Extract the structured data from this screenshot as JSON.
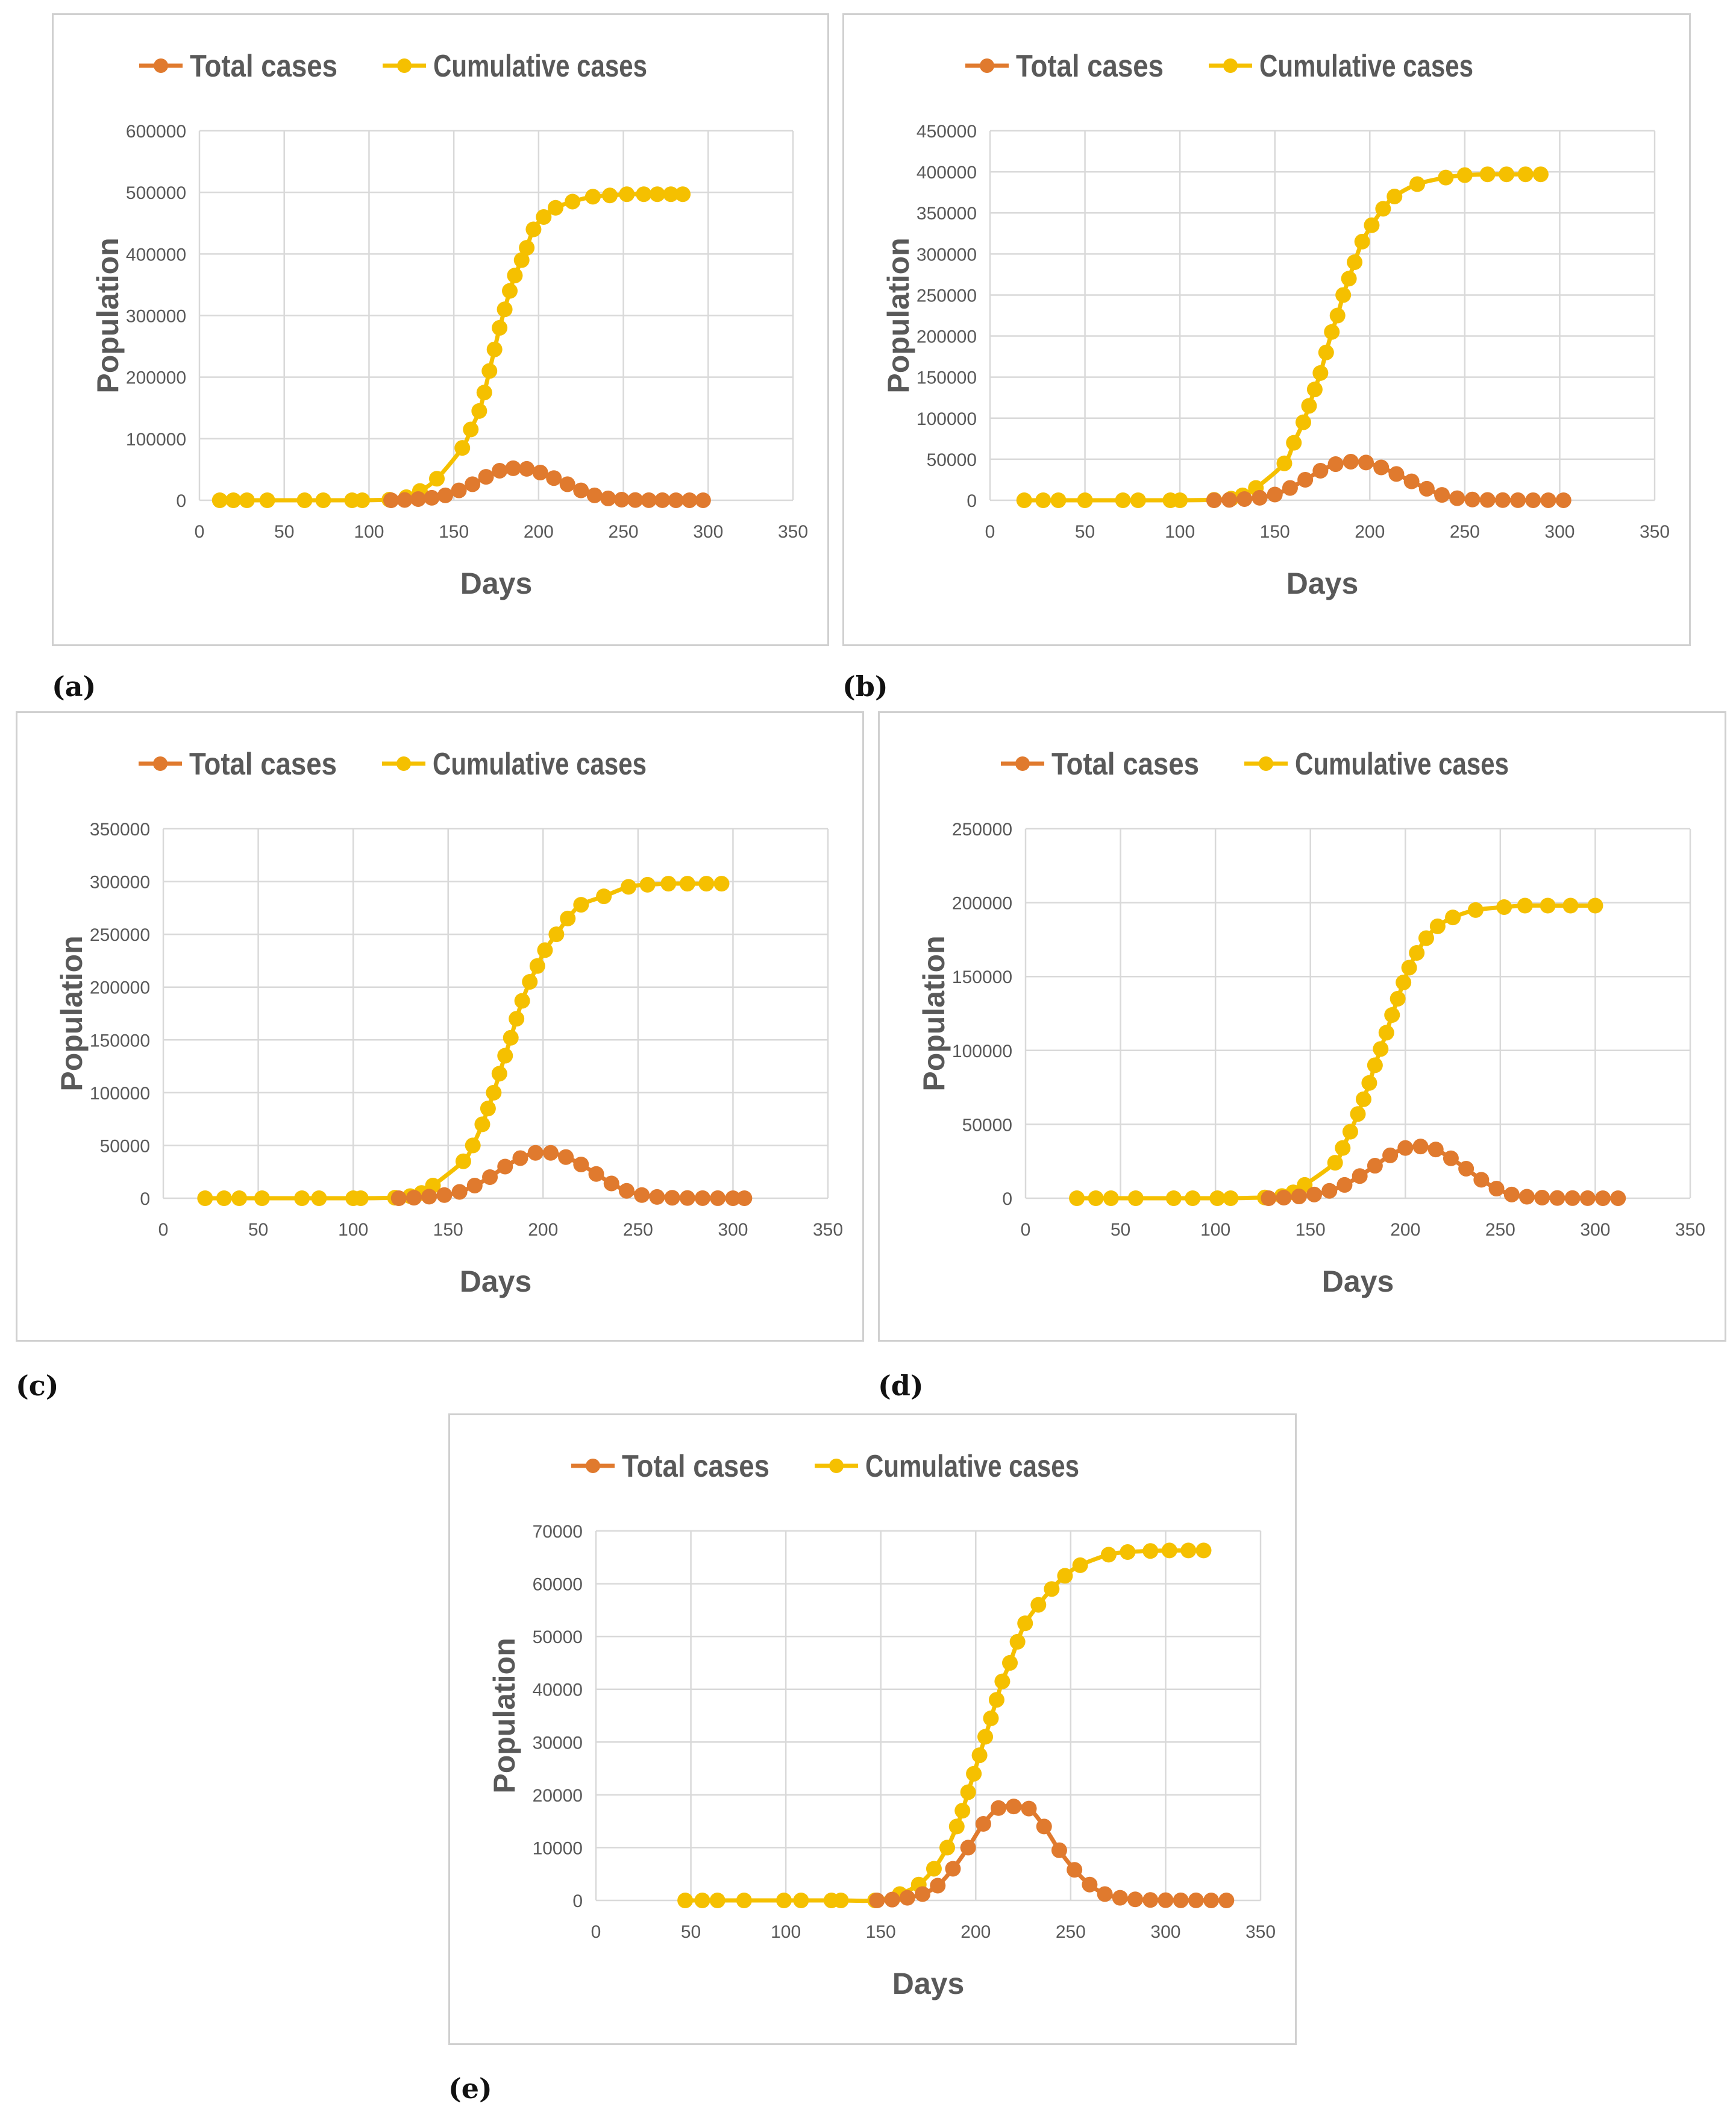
{
  "colors": {
    "total": "#E07A2E",
    "cumulative": "#F5C000",
    "grid": "#D9D9D9",
    "frame": "#D0D0D0",
    "text": "#595959"
  },
  "chart_data": [
    {
      "type": "line",
      "panel_label": "(a)",
      "xlabel": "Days",
      "ylabel": "Population",
      "xlim": [
        0,
        350
      ],
      "ylim": [
        0,
        600000
      ],
      "xticks": [
        0,
        50,
        100,
        150,
        200,
        250,
        300,
        350
      ],
      "yticks": [
        0,
        100000,
        200000,
        300000,
        400000,
        500000,
        600000
      ],
      "xtick_labels": [
        "0",
        "50",
        "100",
        "150",
        "200",
        "250",
        "300",
        "350"
      ],
      "ytick_labels": [
        "0",
        "100000",
        "200000",
        "300000",
        "400000",
        "500000",
        "600000"
      ],
      "legend": [
        "Total cases",
        "Cumulative cases"
      ],
      "series": [
        {
          "name": "Total cases",
          "x": [
            113,
            121,
            129,
            137,
            145,
            153,
            161,
            169,
            177,
            185,
            193,
            201,
            209,
            217,
            225,
            233,
            241,
            249,
            257,
            265,
            273,
            281,
            289,
            297
          ],
          "y": [
            0,
            500,
            2000,
            4000,
            8000,
            16000,
            26000,
            38000,
            48000,
            52000,
            51000,
            45000,
            36000,
            26000,
            16000,
            8000,
            3000,
            1000,
            400,
            150,
            80,
            40,
            20,
            10
          ]
        },
        {
          "name": "Cumulative cases",
          "x": [
            12,
            20,
            28,
            40,
            62,
            73,
            90,
            96,
            112,
            122,
            130,
            140,
            155,
            160,
            165,
            168,
            171,
            174,
            177,
            180,
            183,
            186,
            190,
            193,
            197,
            203,
            210,
            220,
            232,
            242,
            252,
            262,
            270,
            278,
            285
          ],
          "y": [
            0,
            0,
            0,
            0,
            0,
            0,
            0,
            0,
            1000,
            5000,
            15000,
            35000,
            85000,
            115000,
            145000,
            175000,
            210000,
            245000,
            280000,
            310000,
            340000,
            365000,
            390000,
            410000,
            440000,
            460000,
            475000,
            485000,
            493000,
            495000,
            497000,
            497000,
            497000,
            497000,
            497000
          ]
        }
      ]
    },
    {
      "type": "line",
      "panel_label": "(b)",
      "xlabel": "Days",
      "ylabel": "Population",
      "xlim": [
        0,
        350
      ],
      "ylim": [
        0,
        450000
      ],
      "xticks": [
        0,
        50,
        100,
        150,
        200,
        250,
        300,
        350
      ],
      "yticks": [
        0,
        50000,
        100000,
        150000,
        200000,
        250000,
        300000,
        350000,
        400000,
        450000
      ],
      "xtick_labels": [
        "0",
        "50",
        "100",
        "150",
        "200",
        "250",
        "300",
        "350"
      ],
      "ytick_labels": [
        "0",
        "50000",
        "100000",
        "150000",
        "200000",
        "250000",
        "300000",
        "350000",
        "400000",
        "450000"
      ],
      "legend": [
        "Total cases",
        "Cumulative cases"
      ],
      "series": [
        {
          "name": "Total cases",
          "x": [
            118,
            126,
            134,
            142,
            150,
            158,
            166,
            174,
            182,
            190,
            198,
            206,
            214,
            222,
            230,
            238,
            246,
            254,
            262,
            270,
            278,
            286,
            294,
            302
          ],
          "y": [
            0,
            500,
            1500,
            3000,
            7000,
            15000,
            25000,
            36000,
            44000,
            47000,
            46000,
            40000,
            32000,
            23000,
            14000,
            6500,
            2500,
            900,
            350,
            150,
            80,
            40,
            20,
            10
          ]
        },
        {
          "name": "Cumulative cases",
          "x": [
            18,
            28,
            36,
            50,
            70,
            78,
            95,
            100,
            118,
            127,
            133,
            140,
            155,
            160,
            165,
            168,
            171,
            174,
            177,
            180,
            183,
            186,
            189,
            192,
            196,
            201,
            207,
            213,
            225,
            240,
            250,
            262,
            272,
            282,
            290
          ],
          "y": [
            0,
            0,
            0,
            0,
            0,
            0,
            0,
            0,
            500,
            2000,
            6000,
            15000,
            45000,
            70000,
            95000,
            115000,
            135000,
            155000,
            180000,
            205000,
            225000,
            250000,
            270000,
            290000,
            315000,
            335000,
            355000,
            370000,
            385000,
            393000,
            396000,
            397000,
            397000,
            397000,
            397000
          ]
        }
      ]
    },
    {
      "type": "line",
      "panel_label": "(c)",
      "xlabel": "Days",
      "ylabel": "Population",
      "xlim": [
        0,
        350
      ],
      "ylim": [
        0,
        350000
      ],
      "xticks": [
        0,
        50,
        100,
        150,
        200,
        250,
        300,
        350
      ],
      "yticks": [
        0,
        50000,
        100000,
        150000,
        200000,
        250000,
        300000,
        350000
      ],
      "xtick_labels": [
        "0",
        "50",
        "100",
        "150",
        "200",
        "250",
        "300",
        "350"
      ],
      "ytick_labels": [
        "0",
        "50000",
        "100000",
        "150000",
        "200000",
        "250000",
        "300000",
        "350000"
      ],
      "legend": [
        "Total cases",
        "Cumulative cases"
      ],
      "series": [
        {
          "name": "Total cases",
          "x": [
            124,
            132,
            140,
            148,
            156,
            164,
            172,
            180,
            188,
            196,
            204,
            212,
            220,
            228,
            236,
            244,
            252,
            260,
            268,
            276,
            284,
            292,
            300,
            306
          ],
          "y": [
            0,
            500,
            1500,
            3000,
            6000,
            12000,
            20000,
            30000,
            38000,
            43000,
            43000,
            39000,
            32000,
            23000,
            14000,
            7000,
            3000,
            1200,
            450,
            200,
            100,
            40,
            20,
            10
          ]
        },
        {
          "name": "Cumulative cases",
          "x": [
            22,
            32,
            40,
            52,
            73,
            82,
            100,
            104,
            122,
            130,
            136,
            142,
            158,
            163,
            168,
            171,
            174,
            177,
            180,
            183,
            186,
            189,
            193,
            197,
            201,
            207,
            213,
            220,
            232,
            245,
            255,
            266,
            276,
            286,
            294
          ],
          "y": [
            0,
            0,
            0,
            0,
            0,
            0,
            0,
            0,
            500,
            2000,
            5000,
            12000,
            35000,
            50000,
            70000,
            85000,
            100000,
            118000,
            135000,
            152000,
            170000,
            187000,
            205000,
            220000,
            235000,
            250000,
            265000,
            278000,
            286000,
            295000,
            297000,
            298000,
            298000,
            298000,
            298000
          ]
        }
      ]
    },
    {
      "type": "line",
      "panel_label": "(d)",
      "xlabel": "Days",
      "ylabel": "Population",
      "xlim": [
        0,
        350
      ],
      "ylim": [
        0,
        250000
      ],
      "xticks": [
        0,
        50,
        100,
        150,
        200,
        250,
        300,
        350
      ],
      "yticks": [
        0,
        50000,
        100000,
        150000,
        200000,
        250000
      ],
      "xtick_labels": [
        "0",
        "50",
        "100",
        "150",
        "200",
        "250",
        "300",
        "350"
      ],
      "ytick_labels": [
        "0",
        "50000",
        "100000",
        "150000",
        "200000",
        "250000"
      ],
      "legend": [
        "Total cases",
        "Cumulative cases"
      ],
      "series": [
        {
          "name": "Total cases",
          "x": [
            128,
            136,
            144,
            152,
            160,
            168,
            176,
            184,
            192,
            200,
            208,
            216,
            224,
            232,
            240,
            248,
            256,
            264,
            272,
            280,
            288,
            296,
            304,
            312
          ],
          "y": [
            0,
            400,
            1200,
            2500,
            5000,
            9000,
            15000,
            22000,
            29000,
            34000,
            35000,
            33000,
            27000,
            20000,
            12500,
            6500,
            2500,
            1000,
            400,
            150,
            80,
            40,
            20,
            10
          ]
        },
        {
          "name": "Cumulative cases",
          "x": [
            27,
            37,
            45,
            58,
            78,
            88,
            101,
            108,
            126,
            135,
            141,
            147,
            163,
            167,
            171,
            175,
            178,
            181,
            184,
            187,
            190,
            193,
            196,
            199,
            202,
            206,
            211,
            217,
            225,
            237,
            252,
            263,
            275,
            287,
            300
          ],
          "y": [
            0,
            0,
            0,
            0,
            0,
            0,
            0,
            0,
            500,
            1500,
            4000,
            9000,
            24000,
            34000,
            45000,
            57000,
            67000,
            78000,
            90000,
            101000,
            112000,
            124000,
            135000,
            146000,
            156000,
            166000,
            176000,
            184000,
            190000,
            195000,
            197000,
            198000,
            198000,
            198000,
            198000
          ]
        }
      ]
    },
    {
      "type": "line",
      "panel_label": "(e)",
      "xlabel": "Days",
      "ylabel": "Population",
      "xlim": [
        0,
        350
      ],
      "ylim": [
        0,
        70000
      ],
      "xticks": [
        0,
        50,
        100,
        150,
        200,
        250,
        300,
        350
      ],
      "yticks": [
        0,
        10000,
        20000,
        30000,
        40000,
        50000,
        60000,
        70000
      ],
      "xtick_labels": [
        "0",
        "50",
        "100",
        "150",
        "200",
        "250",
        "300",
        "350"
      ],
      "ytick_labels": [
        "0",
        "10000",
        "20000",
        "30000",
        "40000",
        "50000",
        "60000",
        "70000"
      ],
      "legend": [
        "Total cases",
        "Cumulative cases"
      ],
      "series": [
        {
          "name": "Total cases",
          "x": [
            148,
            156,
            164,
            172,
            180,
            188,
            196,
            204,
            212,
            220,
            228,
            236,
            244,
            252,
            260,
            268,
            276,
            284,
            292,
            300,
            308,
            316,
            324,
            332
          ],
          "y": [
            0,
            150,
            500,
            1200,
            2800,
            6000,
            10000,
            14500,
            17500,
            17800,
            17400,
            14000,
            9500,
            5800,
            3000,
            1200,
            500,
            200,
            80,
            40,
            20,
            10,
            5,
            0
          ]
        },
        {
          "name": "Cumulative cases",
          "x": [
            47,
            56,
            64,
            78,
            99,
            108,
            124,
            129,
            147,
            160,
            170,
            178,
            185,
            190,
            193,
            196,
            199,
            202,
            205,
            208,
            211,
            214,
            218,
            222,
            226,
            233,
            240,
            247,
            255,
            270,
            280,
            292,
            302,
            312,
            320
          ],
          "y": [
            0,
            0,
            0,
            0,
            0,
            0,
            0,
            0,
            0,
            1200,
            3000,
            6000,
            10000,
            14000,
            17000,
            20500,
            24000,
            27500,
            31000,
            34500,
            38000,
            41500,
            45000,
            49000,
            52500,
            56000,
            59000,
            61500,
            63500,
            65500,
            66000,
            66200,
            66300,
            66300,
            66300
          ]
        }
      ]
    }
  ]
}
